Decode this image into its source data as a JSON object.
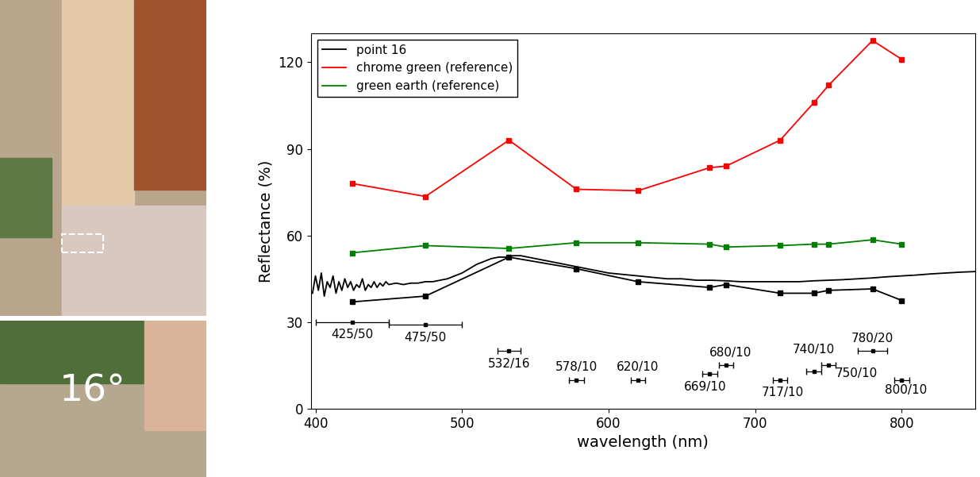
{
  "chart_data": {
    "type": "line",
    "x_label": "wavelength (nm)",
    "y_label": "Reflectance (%)",
    "xlim": [
      397,
      850
    ],
    "xticks": [
      400,
      500,
      600,
      700,
      800
    ],
    "ylim": [
      0,
      130
    ],
    "yticks": [
      0,
      30,
      60,
      90,
      120
    ],
    "legend": "upper left",
    "annotations": [
      {
        "text": "16°"
      }
    ],
    "series": [
      {
        "name": "point 16",
        "color": "#000000",
        "marker": "square",
        "line_style": "solid",
        "x": [
          425,
          475,
          532,
          578,
          620,
          669,
          680,
          717,
          740,
          750,
          780,
          800
        ],
        "values": [
          37,
          39,
          52.5,
          48.5,
          44,
          42,
          43,
          40,
          40,
          41,
          41.5,
          37.5
        ]
      },
      {
        "name": "chrome green (reference)",
        "color": "#ff0000",
        "marker": "square",
        "line_style": "solid",
        "x": [
          425,
          475,
          532,
          578,
          620,
          669,
          680,
          717,
          740,
          750,
          780,
          800
        ],
        "values": [
          78,
          73.5,
          93,
          76,
          75.5,
          83.5,
          84,
          93,
          106,
          112,
          127.5,
          121
        ]
      },
      {
        "name": "green earth (reference)",
        "color": "#008000",
        "marker": "square",
        "line_style": "solid",
        "x": [
          425,
          475,
          532,
          578,
          620,
          669,
          680,
          717,
          740,
          750,
          780,
          800
        ],
        "values": [
          54,
          56.5,
          55.5,
          57.5,
          57.5,
          57,
          56,
          56.5,
          57,
          57,
          58.5,
          57
        ]
      },
      {
        "color": "#000000",
        "marker": "none",
        "line_style": "solid",
        "x": [
          398,
          400,
          402,
          404,
          406,
          408,
          410,
          412,
          414,
          416,
          418,
          420,
          422,
          424,
          426,
          428,
          430,
          432,
          434,
          436,
          438,
          440,
          442,
          444,
          446,
          448,
          450,
          455,
          460,
          465,
          470,
          475,
          480,
          485,
          490,
          495,
          500,
          505,
          510,
          515,
          520,
          525,
          530,
          535,
          540,
          545,
          550,
          555,
          560,
          565,
          570,
          575,
          580,
          590,
          600,
          610,
          620,
          630,
          640,
          650,
          660,
          670,
          680,
          690,
          700,
          710,
          720,
          730,
          740,
          750,
          760,
          770,
          780,
          790,
          800,
          810,
          820,
          830,
          840,
          850
        ],
        "values": [
          40,
          46,
          41,
          47,
          39,
          44,
          42,
          46,
          40,
          44,
          41,
          45,
          42,
          44,
          41,
          43,
          42,
          45,
          41,
          43,
          42,
          44,
          42,
          43.5,
          42.5,
          44,
          43,
          43.5,
          43,
          43.5,
          43.5,
          44,
          44,
          44.5,
          45,
          46,
          47,
          48.5,
          50,
          51,
          52,
          52.5,
          52.5,
          53,
          53,
          52.5,
          52,
          51.5,
          51,
          50.5,
          50,
          49.5,
          49,
          48,
          47,
          46.5,
          46,
          45.5,
          45,
          45,
          44.5,
          44.5,
          44.3,
          44,
          44,
          44,
          44,
          44,
          44.3,
          44.5,
          44.7,
          45,
          45.3,
          45.7,
          46,
          46.3,
          46.7,
          47,
          47.3,
          47.5
        ]
      }
    ],
    "filters": {
      "labels": [
        "425/50",
        "475/50",
        "532/16",
        "578/10",
        "620/10",
        "669/10",
        "680/10",
        "717/10",
        "740/10",
        "750/10",
        "780/20",
        "800/10"
      ],
      "x": [
        425,
        475,
        532,
        578,
        620,
        669,
        680,
        717,
        740,
        750,
        780,
        800
      ],
      "values": [
        30,
        29,
        20,
        10,
        10,
        12,
        15,
        10,
        13,
        15,
        20,
        10
      ],
      "xerr": [
        25,
        25,
        8,
        5,
        5,
        5,
        5,
        5,
        5,
        5,
        10,
        5
      ],
      "color": "#000000"
    }
  }
}
